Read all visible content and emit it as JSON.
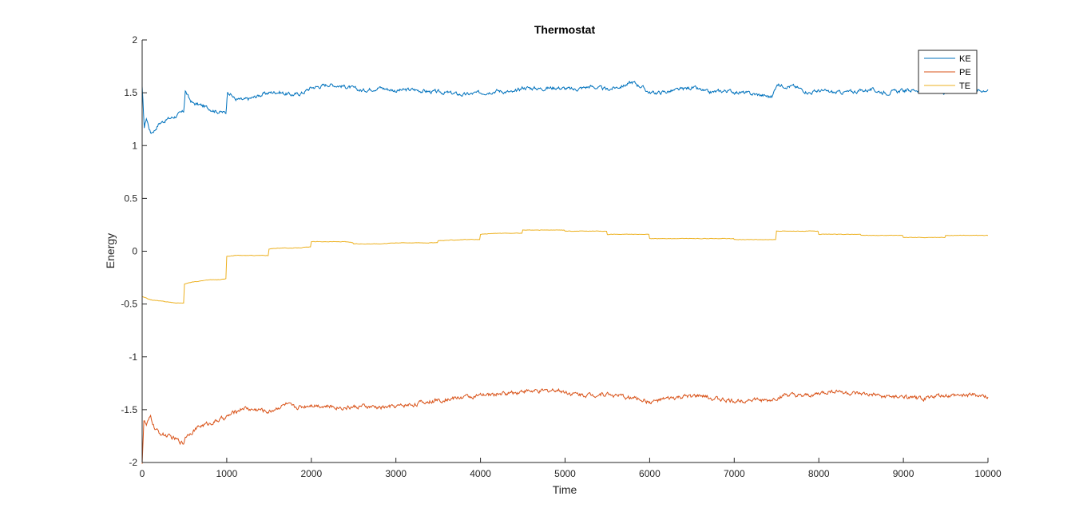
{
  "chart_data": {
    "type": "line",
    "title": "Thermostat",
    "xlabel": "Time",
    "ylabel": "Energy",
    "xlim": [
      0,
      10000
    ],
    "ylim": [
      -2,
      2
    ],
    "xticks": [
      0,
      1000,
      2000,
      3000,
      4000,
      5000,
      6000,
      7000,
      8000,
      9000,
      10000
    ],
    "yticks": [
      -2,
      -1.5,
      -1,
      -0.5,
      0,
      0.5,
      1,
      1.5,
      2
    ],
    "xtick_labels": [
      "0",
      "1000",
      "2000",
      "3000",
      "4000",
      "5000",
      "6000",
      "7000",
      "8000",
      "9000",
      "10000"
    ],
    "ytick_labels": [
      "-2",
      "-1.5",
      "-1",
      "-0.5",
      "0",
      "0.5",
      "1",
      "1.5",
      "2"
    ],
    "grid": false,
    "legend_position": "top-right",
    "series": [
      {
        "name": "KE",
        "color": "#0072BD",
        "x": [
          0,
          25,
          50,
          100,
          150,
          200,
          300,
          400,
          490,
          510,
          550,
          600,
          700,
          800,
          900,
          990,
          1010,
          1100,
          1200,
          1300,
          1400,
          1500,
          1600,
          1700,
          1800,
          1900,
          2000,
          2100,
          2200,
          2400,
          2600,
          2800,
          3000,
          3200,
          3400,
          3600,
          3800,
          4000,
          4200,
          4400,
          4500,
          4700,
          4900,
          5100,
          5300,
          5500,
          5700,
          5800,
          5900,
          6000,
          6100,
          6300,
          6500,
          6700,
          6900,
          7100,
          7300,
          7450,
          7500,
          7550,
          7700,
          7900,
          8000,
          8200,
          8400,
          8600,
          8800,
          9000,
          9200,
          9400,
          9500,
          9700,
          9900,
          10000
        ],
        "y": [
          1.55,
          1.17,
          1.26,
          1.12,
          1.15,
          1.21,
          1.25,
          1.28,
          1.32,
          1.52,
          1.45,
          1.4,
          1.38,
          1.35,
          1.32,
          1.31,
          1.52,
          1.44,
          1.43,
          1.45,
          1.48,
          1.5,
          1.51,
          1.49,
          1.48,
          1.5,
          1.55,
          1.56,
          1.58,
          1.56,
          1.52,
          1.55,
          1.52,
          1.53,
          1.51,
          1.5,
          1.48,
          1.5,
          1.52,
          1.5,
          1.55,
          1.54,
          1.55,
          1.53,
          1.56,
          1.53,
          1.57,
          1.6,
          1.56,
          1.5,
          1.5,
          1.52,
          1.55,
          1.5,
          1.52,
          1.5,
          1.48,
          1.46,
          1.58,
          1.57,
          1.56,
          1.5,
          1.52,
          1.5,
          1.51,
          1.53,
          1.5,
          1.52,
          1.53,
          1.5,
          1.51,
          1.53,
          1.52,
          1.53
        ]
      },
      {
        "name": "PE",
        "color": "#D95319",
        "x": [
          0,
          20,
          50,
          100,
          150,
          200,
          300,
          400,
          490,
          510,
          600,
          700,
          800,
          900,
          1000,
          1100,
          1200,
          1300,
          1400,
          1500,
          1600,
          1700,
          1800,
          1900,
          2000,
          2200,
          2400,
          2600,
          2800,
          3000,
          3200,
          3400,
          3600,
          3800,
          4000,
          4200,
          4400,
          4500,
          4700,
          4900,
          5100,
          5300,
          5500,
          5700,
          5900,
          6000,
          6200,
          6400,
          6600,
          6800,
          7000,
          7200,
          7400,
          7600,
          7800,
          8000,
          8200,
          8400,
          8600,
          8800,
          9000,
          9200,
          9400,
          9600,
          9800,
          10000
        ],
        "y": [
          -2,
          -1.6,
          -1.65,
          -1.57,
          -1.68,
          -1.72,
          -1.75,
          -1.78,
          -1.82,
          -1.75,
          -1.7,
          -1.65,
          -1.63,
          -1.6,
          -1.57,
          -1.52,
          -1.48,
          -1.5,
          -1.5,
          -1.52,
          -1.48,
          -1.45,
          -1.48,
          -1.47,
          -1.45,
          -1.47,
          -1.48,
          -1.47,
          -1.48,
          -1.47,
          -1.45,
          -1.42,
          -1.4,
          -1.38,
          -1.37,
          -1.35,
          -1.34,
          -1.32,
          -1.33,
          -1.31,
          -1.35,
          -1.36,
          -1.35,
          -1.38,
          -1.4,
          -1.43,
          -1.4,
          -1.38,
          -1.37,
          -1.4,
          -1.42,
          -1.4,
          -1.42,
          -1.36,
          -1.38,
          -1.35,
          -1.32,
          -1.35,
          -1.36,
          -1.38,
          -1.38,
          -1.4,
          -1.37,
          -1.37,
          -1.36,
          -1.38
        ]
      },
      {
        "name": "TE",
        "color": "#EDB120",
        "x": [
          0,
          100,
          200,
          300,
          400,
          490,
          500,
          600,
          700,
          800,
          900,
          990,
          1000,
          1100,
          1200,
          1300,
          1400,
          1490,
          1500,
          1600,
          1800,
          1990,
          2000,
          2200,
          2400,
          2490,
          2500,
          2700,
          2800,
          3000,
          3200,
          3490,
          3500,
          3800,
          3990,
          4000,
          4200,
          4490,
          4500,
          4700,
          4990,
          5000,
          5200,
          5490,
          5500,
          5800,
          5990,
          6000,
          6300,
          6600,
          6990,
          7000,
          7200,
          7490,
          7500,
          7700,
          7990,
          8000,
          8200,
          8490,
          8500,
          8800,
          8990,
          9000,
          9300,
          9490,
          9500,
          9800,
          10000
        ],
        "y": [
          -0.43,
          -0.46,
          -0.47,
          -0.48,
          -0.49,
          -0.49,
          -0.31,
          -0.29,
          -0.28,
          -0.27,
          -0.27,
          -0.26,
          -0.05,
          -0.04,
          -0.04,
          -0.04,
          -0.04,
          -0.04,
          0.02,
          0.03,
          0.03,
          0.04,
          0.09,
          0.09,
          0.09,
          0.08,
          0.07,
          0.07,
          0.07,
          0.08,
          0.08,
          0.08,
          0.1,
          0.11,
          0.11,
          0.16,
          0.17,
          0.17,
          0.2,
          0.2,
          0.2,
          0.19,
          0.19,
          0.19,
          0.16,
          0.16,
          0.16,
          0.12,
          0.12,
          0.12,
          0.12,
          0.11,
          0.11,
          0.11,
          0.19,
          0.19,
          0.19,
          0.16,
          0.16,
          0.16,
          0.15,
          0.15,
          0.15,
          0.13,
          0.13,
          0.13,
          0.15,
          0.15,
          0.15
        ]
      }
    ]
  }
}
